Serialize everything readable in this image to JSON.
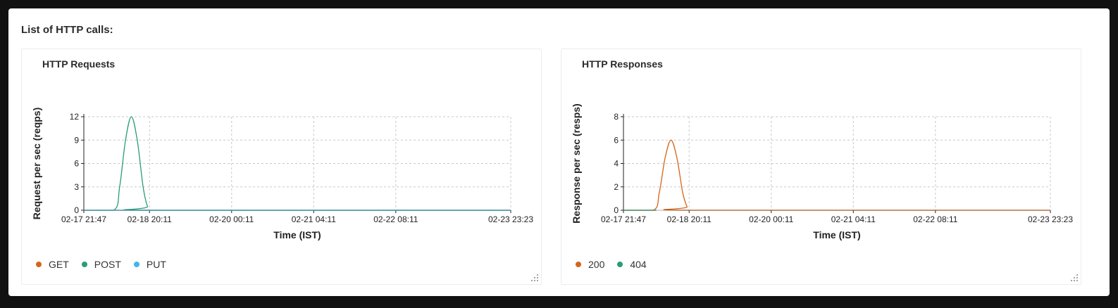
{
  "page": {
    "section_title": "List of HTTP calls:"
  },
  "colors": {
    "get": "#d4661b",
    "post": "#2a9d74",
    "put": "#3bb7ea",
    "status_200": "#d4661b",
    "status_404": "#2a9d74",
    "grid": "#c8c8c8",
    "axis": "#222222"
  },
  "icons": {
    "resize_handle": "resize-grip-icon",
    "legend_marker": "dot-icon"
  },
  "chart_data": [
    {
      "type": "line",
      "title": "HTTP Requests",
      "xlabel": "Time (IST)",
      "ylabel": "Request per sec (reqps)",
      "ylim": [
        0,
        12
      ],
      "yticks": [
        0,
        3,
        6,
        9,
        12
      ],
      "xlim": [
        "2023-02-17 21:47",
        "2023-02-23 23:23"
      ],
      "xticks": [
        {
          "label": "02-17 21:47",
          "value": "2023-02-17 21:47"
        },
        {
          "label": "02-18 20:11",
          "value": "2023-02-18 20:11"
        },
        {
          "label": "02-20 00:11",
          "value": "2023-02-20 00:11"
        },
        {
          "label": "02-21 04:11",
          "value": "2023-02-21 04:11"
        },
        {
          "label": "02-22 08:11",
          "value": "2023-02-22 08:11"
        },
        {
          "label": "02-23 23:23",
          "value": "2023-02-23 23:23"
        }
      ],
      "grid": true,
      "legend_position": "bottom-left",
      "series": [
        {
          "name": "GET",
          "color": "#d4661b",
          "x": [
            "2023-02-17 21:47",
            "2023-02-23 23:23"
          ],
          "y": [
            0,
            0
          ]
        },
        {
          "name": "POST",
          "color": "#2a9d74",
          "x": [
            "2023-02-17 21:47",
            "2023-02-18 08:00",
            "2023-02-18 10:00",
            "2023-02-18 12:00",
            "2023-02-18 14:00",
            "2023-02-18 16:00",
            "2023-02-18 18:00",
            "2023-02-18 19:30",
            "2023-02-18 21:00",
            "2023-02-23 23:23"
          ],
          "y": [
            0,
            0,
            3,
            9,
            12,
            9,
            3,
            0.5,
            0,
            0
          ]
        },
        {
          "name": "PUT",
          "color": "#3bb7ea",
          "x": [
            "2023-02-17 21:47",
            "2023-02-23 23:23"
          ],
          "y": [
            0,
            0
          ]
        }
      ]
    },
    {
      "type": "line",
      "title": "HTTP Responses",
      "xlabel": "Time (IST)",
      "ylabel": "Response per sec (resps)",
      "ylim": [
        0,
        8
      ],
      "yticks": [
        0,
        2,
        4,
        6,
        8
      ],
      "xlim": [
        "2023-02-17 21:47",
        "2023-02-23 23:23"
      ],
      "xticks": [
        {
          "label": "02-17 21:47",
          "value": "2023-02-17 21:47"
        },
        {
          "label": "02-18 20:11",
          "value": "2023-02-18 20:11"
        },
        {
          "label": "02-20 00:11",
          "value": "2023-02-20 00:11"
        },
        {
          "label": "02-21 04:11",
          "value": "2023-02-21 04:11"
        },
        {
          "label": "02-22 08:11",
          "value": "2023-02-22 08:11"
        },
        {
          "label": "02-23 23:23",
          "value": "2023-02-23 23:23"
        }
      ],
      "grid": true,
      "legend_position": "bottom-left",
      "series": [
        {
          "name": "200",
          "color": "#d4661b",
          "x": [
            "2023-02-17 21:47",
            "2023-02-18 08:00",
            "2023-02-18 10:00",
            "2023-02-18 12:00",
            "2023-02-18 14:00",
            "2023-02-18 16:00",
            "2023-02-18 18:00",
            "2023-02-18 19:30",
            "2023-02-18 21:00",
            "2023-02-23 23:23"
          ],
          "y": [
            0,
            0,
            1.5,
            4.5,
            6,
            4.5,
            1.5,
            0.3,
            0,
            0
          ]
        },
        {
          "name": "404",
          "color": "#2a9d74",
          "x": [
            "2023-02-17 21:47",
            "2023-02-18 09:00"
          ],
          "y": [
            0,
            0
          ]
        }
      ]
    }
  ]
}
